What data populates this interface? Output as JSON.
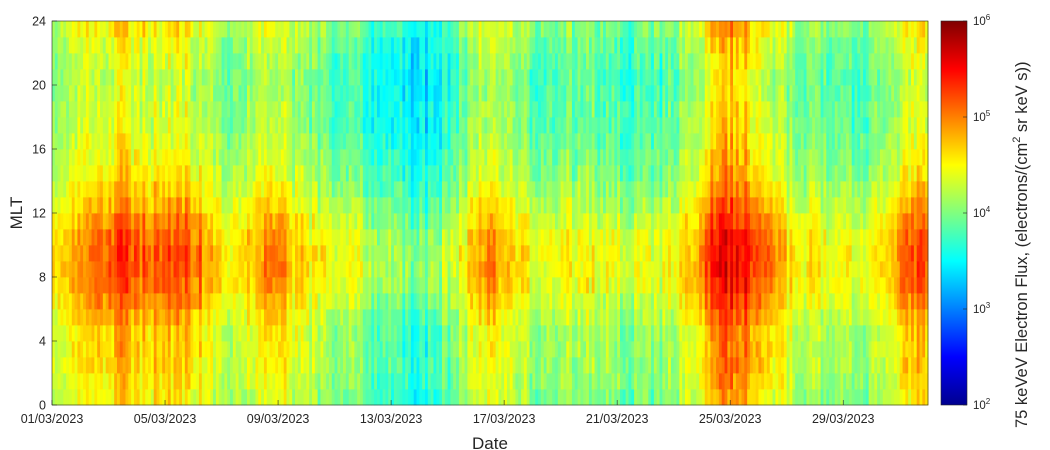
{
  "chart_data": {
    "type": "heatmap",
    "title": "",
    "xlabel": "Date",
    "ylabel": "MLT",
    "x_range": [
      "01/03/2023",
      "31/03/2023"
    ],
    "x_ticks": [
      "01/03/2023",
      "05/03/2023",
      "09/03/2023",
      "13/03/2023",
      "17/03/2023",
      "21/03/2023",
      "25/03/2023",
      "29/03/2023"
    ],
    "x_tick_days": [
      0,
      4,
      8,
      12,
      16,
      20,
      24,
      28
    ],
    "x_span_days": 31,
    "ylim": [
      0,
      24
    ],
    "y_ticks": [
      "0",
      "4",
      "8",
      "12",
      "16",
      "20",
      "24"
    ],
    "colorscale": "jet",
    "color_scale_type": "log",
    "color_range": [
      100,
      1000000
    ],
    "colorbar": {
      "label_prefix": "75 keVeV Electron Flux, (electrons/(cm",
      "label_sup": "2",
      "label_suffix": " sr keV s))",
      "tick_base": "10",
      "tick_exponents": [
        "2",
        "3",
        "4",
        "5",
        "6"
      ]
    },
    "mlt_bins": 24,
    "flux_profile_log10": [
      {
        "day": 0.0,
        "value": 4.15
      },
      {
        "day": 0.5,
        "value": 4.25
      },
      {
        "day": 1.0,
        "value": 4.35
      },
      {
        "day": 1.5,
        "value": 4.45
      },
      {
        "day": 2.0,
        "value": 4.55
      },
      {
        "day": 2.5,
        "value": 4.7
      },
      {
        "day": 3.0,
        "value": 4.6
      },
      {
        "day": 3.5,
        "value": 4.5
      },
      {
        "day": 4.0,
        "value": 4.55
      },
      {
        "day": 4.5,
        "value": 4.7
      },
      {
        "day": 5.0,
        "value": 4.5
      },
      {
        "day": 5.5,
        "value": 4.35
      },
      {
        "day": 6.0,
        "value": 4.2
      },
      {
        "day": 6.5,
        "value": 4.15
      },
      {
        "day": 7.0,
        "value": 4.25
      },
      {
        "day": 7.5,
        "value": 4.4
      },
      {
        "day": 8.0,
        "value": 4.45
      },
      {
        "day": 8.5,
        "value": 4.3
      },
      {
        "day": 9.0,
        "value": 4.15
      },
      {
        "day": 9.5,
        "value": 4.05
      },
      {
        "day": 10.0,
        "value": 4.0
      },
      {
        "day": 10.5,
        "value": 3.95
      },
      {
        "day": 11.0,
        "value": 3.85
      },
      {
        "day": 11.5,
        "value": 3.75
      },
      {
        "day": 12.0,
        "value": 3.65
      },
      {
        "day": 12.5,
        "value": 3.6
      },
      {
        "day": 13.0,
        "value": 3.5
      },
      {
        "day": 13.5,
        "value": 3.65
      },
      {
        "day": 14.0,
        "value": 3.8
      },
      {
        "day": 14.5,
        "value": 4.0
      },
      {
        "day": 15.0,
        "value": 4.3
      },
      {
        "day": 15.5,
        "value": 4.45
      },
      {
        "day": 16.0,
        "value": 4.3
      },
      {
        "day": 16.5,
        "value": 4.15
      },
      {
        "day": 17.0,
        "value": 4.05
      },
      {
        "day": 17.5,
        "value": 4.0
      },
      {
        "day": 18.0,
        "value": 4.05
      },
      {
        "day": 18.5,
        "value": 4.0
      },
      {
        "day": 19.0,
        "value": 4.05
      },
      {
        "day": 19.5,
        "value": 4.0
      },
      {
        "day": 20.0,
        "value": 3.95
      },
      {
        "day": 20.5,
        "value": 3.9
      },
      {
        "day": 21.0,
        "value": 3.9
      },
      {
        "day": 21.5,
        "value": 3.95
      },
      {
        "day": 22.0,
        "value": 4.05
      },
      {
        "day": 22.5,
        "value": 4.25
      },
      {
        "day": 23.0,
        "value": 4.45
      },
      {
        "day": 23.5,
        "value": 4.85
      },
      {
        "day": 24.0,
        "value": 4.95
      },
      {
        "day": 24.5,
        "value": 4.85
      },
      {
        "day": 25.0,
        "value": 4.65
      },
      {
        "day": 25.5,
        "value": 4.45
      },
      {
        "day": 26.0,
        "value": 4.25
      },
      {
        "day": 26.5,
        "value": 4.15
      },
      {
        "day": 27.0,
        "value": 4.1
      },
      {
        "day": 27.5,
        "value": 4.05
      },
      {
        "day": 28.0,
        "value": 4.0
      },
      {
        "day": 28.5,
        "value": 4.0
      },
      {
        "day": 29.0,
        "value": 4.05
      },
      {
        "day": 29.5,
        "value": 4.2
      },
      {
        "day": 30.0,
        "value": 4.45
      },
      {
        "day": 30.5,
        "value": 4.6
      },
      {
        "day": 31.0,
        "value": 4.5
      }
    ],
    "mlt_profile_log10": [
      {
        "mlt": 0.5,
        "value": 0.0
      },
      {
        "mlt": 1.5,
        "value": 0.05
      },
      {
        "mlt": 2.5,
        "value": 0.1
      },
      {
        "mlt": 3.5,
        "value": 0.1
      },
      {
        "mlt": 4.5,
        "value": 0.1
      },
      {
        "mlt": 5.5,
        "value": 0.2
      },
      {
        "mlt": 6.5,
        "value": 0.3
      },
      {
        "mlt": 7.5,
        "value": 0.4
      },
      {
        "mlt": 8.5,
        "value": 0.45
      },
      {
        "mlt": 9.5,
        "value": 0.45
      },
      {
        "mlt": 10.5,
        "value": 0.4
      },
      {
        "mlt": 11.5,
        "value": 0.3
      },
      {
        "mlt": 12.5,
        "value": 0.2
      },
      {
        "mlt": 13.5,
        "value": 0.1
      },
      {
        "mlt": 14.5,
        "value": 0.0
      },
      {
        "mlt": 15.5,
        "value": -0.05
      },
      {
        "mlt": 16.5,
        "value": -0.1
      },
      {
        "mlt": 17.5,
        "value": -0.15
      },
      {
        "mlt": 18.5,
        "value": -0.15
      },
      {
        "mlt": 19.5,
        "value": -0.2
      },
      {
        "mlt": 20.5,
        "value": -0.2
      },
      {
        "mlt": 21.5,
        "value": -0.15
      },
      {
        "mlt": 22.5,
        "value": -0.1
      },
      {
        "mlt": 23.5,
        "value": 0.0
      }
    ]
  }
}
